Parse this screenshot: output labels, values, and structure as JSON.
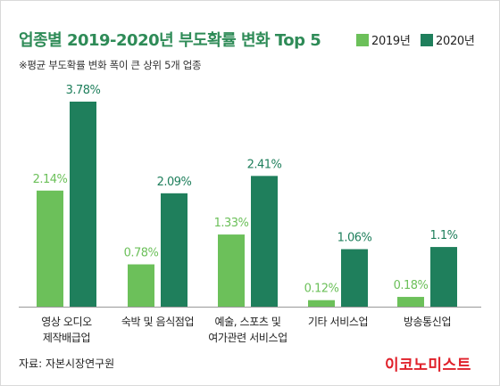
{
  "chart_data": {
    "type": "bar",
    "title": "업종별 2019-2020년 부도확률 변화 Top 5",
    "subtitle": "※평균 부도확률 변화 폭이 큰 상위 5개 업종",
    "categories": [
      [
        "영상 오디오",
        "제작배급업"
      ],
      [
        "숙박 및 음식점업"
      ],
      [
        "예술, 스포츠 및",
        "여가관련 서비스업"
      ],
      [
        "기타 서비스업"
      ],
      [
        "방송통신업"
      ]
    ],
    "series": [
      {
        "name": "2019년",
        "color": "#6cc05a",
        "values": [
          2.14,
          0.78,
          1.33,
          0.12,
          0.18
        ],
        "labels": [
          "2.14%",
          "0.78%",
          "1.33%",
          "0.12%",
          "0.18%"
        ]
      },
      {
        "name": "2020년",
        "color": "#1f7f5c",
        "values": [
          3.78,
          2.09,
          2.41,
          1.06,
          1.1
        ],
        "labels": [
          "3.78%",
          "2.09%",
          "2.41%",
          "1.06%",
          "1.1%"
        ]
      }
    ],
    "ylim": [
      0,
      3.78
    ],
    "grid": false,
    "legend": "top-right"
  },
  "footer": {
    "source": "자료: 자본시장연구원",
    "logo": "이코노미스트"
  },
  "colors": {
    "title": "#2e8b57",
    "axis": "#999999",
    "logo": "#e0202a"
  }
}
